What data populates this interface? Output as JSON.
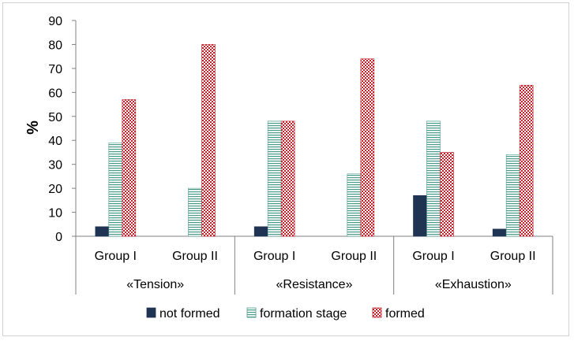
{
  "chart_data": {
    "type": "bar",
    "ylabel": "%",
    "ylim": [
      0,
      90
    ],
    "yticks": [
      0,
      10,
      20,
      30,
      40,
      50,
      60,
      70,
      80,
      90
    ],
    "grid": false,
    "legend_position": "bottom",
    "groups": [
      {
        "label": "«Tension»",
        "categories": [
          "Group I",
          "Group II"
        ]
      },
      {
        "label": "«Resistance»",
        "categories": [
          "Group I",
          "Group II"
        ]
      },
      {
        "label": "«Exhaustion»",
        "categories": [
          "Group I",
          "Group II"
        ]
      }
    ],
    "categories": [
      "Group I",
      "Group II",
      "Group I",
      "Group II",
      "Group I",
      "Group II"
    ],
    "series": [
      {
        "name": "not formed",
        "color": "#1f3352",
        "pattern": "solid",
        "values": [
          4,
          0,
          4,
          0,
          17,
          3
        ]
      },
      {
        "name": "formation stage",
        "color": "#4a9a8a",
        "pattern": "horizontal-lines",
        "values": [
          39,
          20,
          48,
          26,
          48,
          34
        ]
      },
      {
        "name": "formed",
        "color": "#c0202a",
        "pattern": "checker",
        "values": [
          57,
          80,
          48,
          74,
          35,
          63
        ]
      }
    ]
  }
}
